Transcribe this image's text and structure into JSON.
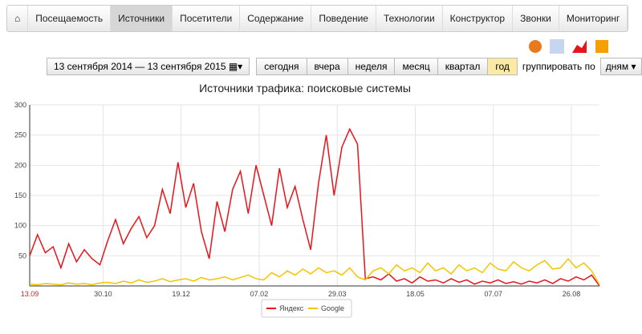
{
  "nav": {
    "items": [
      "Посещаемость",
      "Источники",
      "Посетители",
      "Содержание",
      "Поведение",
      "Технологии",
      "Конструктор",
      "Звонки",
      "Мониторинг"
    ],
    "active": 1
  },
  "toolbar": {
    "date_range": "13 сентября 2014 — 13 сентября 2015",
    "periods": [
      "сегодня",
      "вчера",
      "неделя",
      "месяц",
      "квартал",
      "год"
    ],
    "active_period": 5,
    "group_label": "группировать по",
    "group_value": "дням"
  },
  "chart_data": {
    "type": "line",
    "title": "Источники трафика: поисковые системы",
    "x": [
      0,
      5,
      10,
      15,
      20,
      25,
      30,
      35,
      40,
      45,
      50,
      55,
      60,
      65,
      70,
      75,
      80,
      85,
      90,
      95,
      100,
      105,
      110,
      115,
      120,
      125,
      130,
      135,
      140,
      145,
      150,
      155,
      160,
      165,
      170,
      175,
      180,
      185,
      190,
      195,
      200,
      205,
      210,
      215,
      220,
      225,
      230,
      235,
      240,
      245,
      250,
      255,
      260,
      265,
      270,
      275,
      280,
      285,
      290,
      295,
      300,
      305,
      310,
      315,
      320,
      325,
      330,
      335,
      340,
      345,
      350,
      355,
      360,
      365
    ],
    "xlim": [
      0,
      365
    ],
    "xticks": [
      {
        "value": 0,
        "label": "13.09"
      },
      {
        "value": 47,
        "label": "30.10"
      },
      {
        "value": 97,
        "label": "19.12"
      },
      {
        "value": 147,
        "label": "07.02"
      },
      {
        "value": 197,
        "label": "29.03"
      },
      {
        "value": 247,
        "label": "18.05"
      },
      {
        "value": 297,
        "label": "07.07"
      },
      {
        "value": 347,
        "label": "26.08"
      }
    ],
    "ylim": [
      0,
      300
    ],
    "yticks": [
      50,
      100,
      150,
      200,
      250,
      300
    ],
    "grid": true,
    "series": [
      {
        "name": "Яндекс",
        "color": "#e8141c",
        "values": [
          50,
          85,
          55,
          65,
          30,
          70,
          40,
          60,
          45,
          35,
          75,
          110,
          70,
          95,
          115,
          80,
          100,
          160,
          120,
          205,
          130,
          170,
          90,
          45,
          140,
          90,
          160,
          190,
          120,
          200,
          150,
          100,
          195,
          130,
          165,
          110,
          60,
          170,
          250,
          150,
          230,
          260,
          235,
          12,
          15,
          10,
          20,
          8,
          12,
          5,
          15,
          8,
          10,
          5,
          12,
          6,
          10,
          3,
          8,
          5,
          10,
          4,
          7,
          3,
          8,
          5,
          10,
          4,
          12,
          8,
          15,
          10,
          18,
          0
        ]
      },
      {
        "name": "Google",
        "color": "#f5c400",
        "values": [
          3,
          2,
          4,
          3,
          2,
          5,
          3,
          4,
          2,
          5,
          6,
          4,
          8,
          5,
          10,
          6,
          8,
          12,
          7,
          10,
          12,
          8,
          14,
          10,
          12,
          15,
          10,
          14,
          18,
          12,
          10,
          22,
          15,
          25,
          18,
          28,
          20,
          30,
          22,
          25,
          18,
          30,
          15,
          10,
          25,
          30,
          20,
          35,
          25,
          30,
          22,
          38,
          25,
          30,
          20,
          35,
          25,
          30,
          22,
          38,
          28,
          25,
          40,
          30,
          25,
          35,
          42,
          28,
          30,
          45,
          30,
          38,
          25,
          2
        ]
      }
    ]
  }
}
